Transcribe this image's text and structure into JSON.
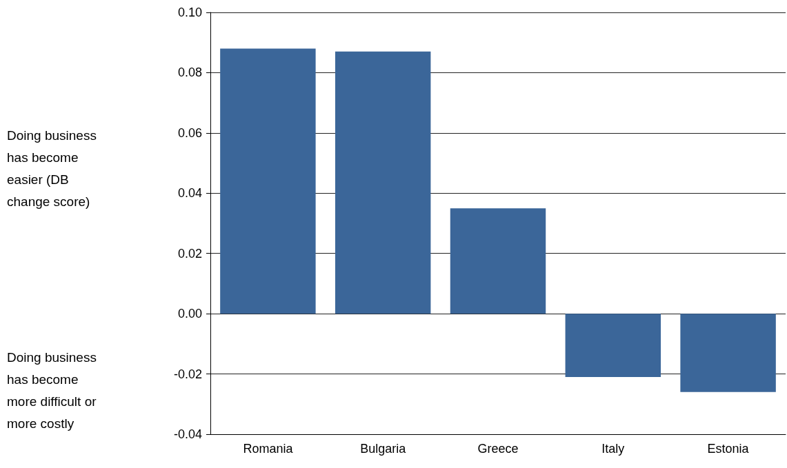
{
  "chart_data": {
    "type": "bar",
    "categories": [
      "Romania",
      "Bulgaria",
      "Greece",
      "Italy",
      "Estonia"
    ],
    "values": [
      0.088,
      0.087,
      0.035,
      -0.021,
      -0.026
    ],
    "color": "#3b6699",
    "ylim": [
      -0.04,
      0.1
    ],
    "yticks": [
      {
        "value": -0.04,
        "label": "-0.04"
      },
      {
        "value": -0.02,
        "label": "-0.02"
      },
      {
        "value": 0,
        "label": "0.00"
      },
      {
        "value": 0.02,
        "label": "0.02"
      },
      {
        "value": 0.04,
        "label": "0.04"
      },
      {
        "value": 0.06,
        "label": "0.06"
      },
      {
        "value": 0.08,
        "label": "0.08"
      },
      {
        "value": 0.1,
        "label": "0.10"
      }
    ],
    "grid": "y",
    "annotations": [
      "Doing business has become easier (DB change score)",
      "Doing business has become more difficult or more costly"
    ]
  }
}
